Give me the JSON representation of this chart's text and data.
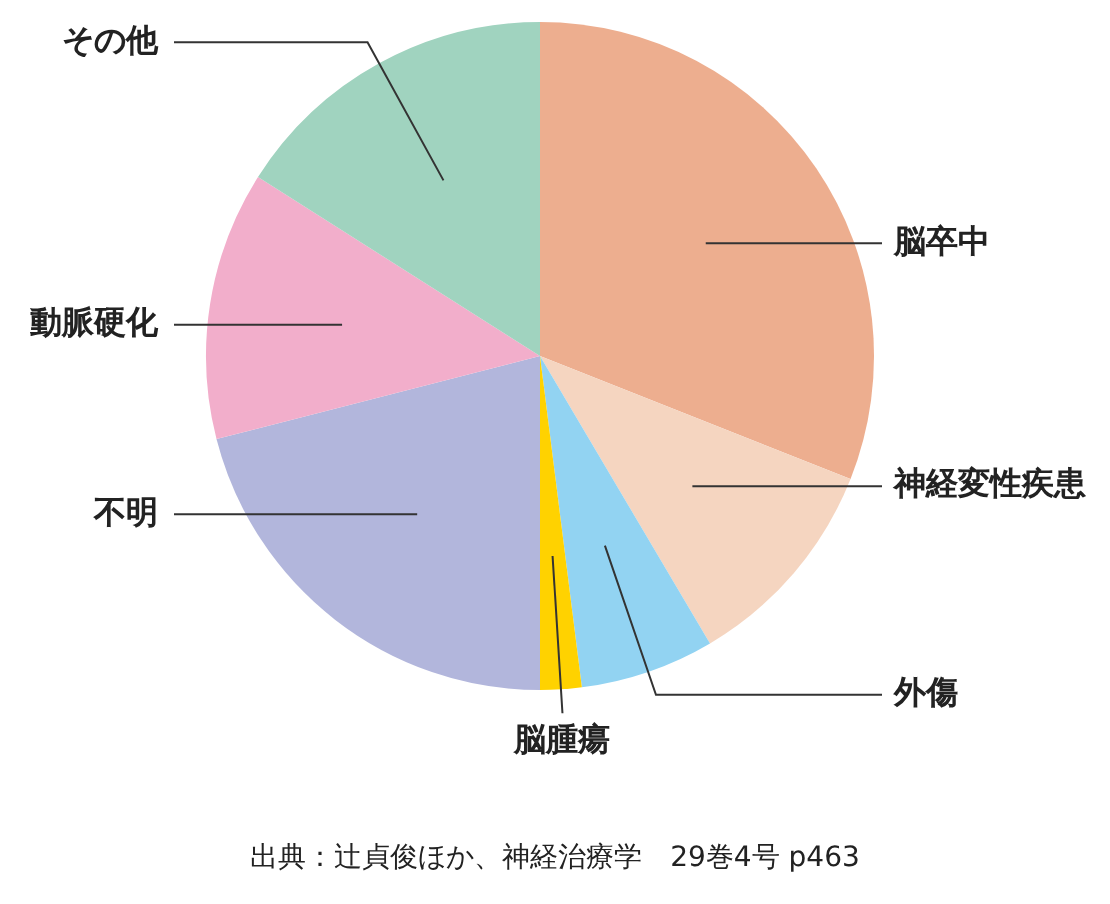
{
  "chart_data": {
    "type": "pie",
    "categories": [
      "脳卒中",
      "神経変性疾患",
      "外傷",
      "脳腫瘍",
      "不明",
      "動脈硬化",
      "その他"
    ],
    "values": [
      31,
      10.5,
      6.5,
      2,
      21,
      13,
      16
    ],
    "colors": [
      "#edae8f",
      "#f5d5c0",
      "#92d3f2",
      "#ffd200",
      "#b2b6dc",
      "#f2aecb",
      "#a0d3bf"
    ],
    "legend": false,
    "annotations": [
      "出典：辻貞俊ほか、神経治療学　29巻4号 p463"
    ]
  }
}
